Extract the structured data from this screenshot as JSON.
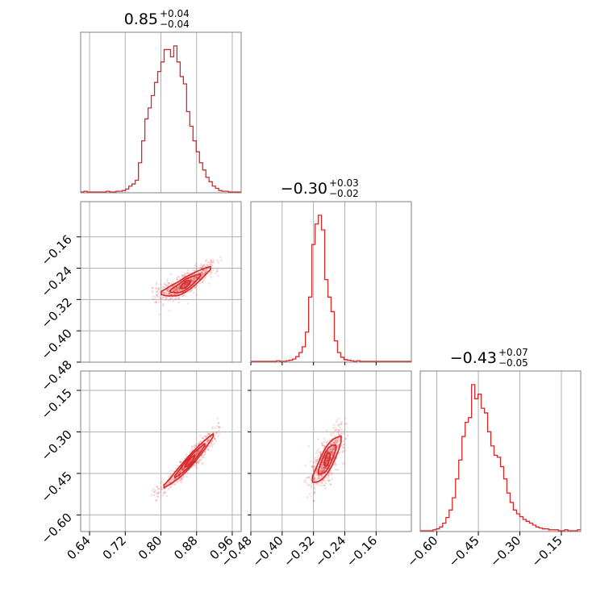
{
  "chart_data": {
    "type": "corner",
    "color": "#d62728",
    "grid": true,
    "parameters": [
      {
        "title": {
          "median": "0.85",
          "plus": "+0.04",
          "minus": "−0.04"
        },
        "range": [
          0.62,
          0.98
        ],
        "ticks": [
          0.64,
          0.72,
          0.8,
          0.88,
          0.96
        ],
        "tick_labels": [
          "0.64",
          "0.72",
          "0.80",
          "0.88",
          "0.96"
        ],
        "hist_bin_width": 0.0072,
        "hist_centers": [
          0.6236,
          0.6308,
          0.638,
          0.6452,
          0.6524,
          0.6596,
          0.6668,
          0.674,
          0.6812,
          0.6884,
          0.6956,
          0.7028,
          0.71,
          0.7172,
          0.7244,
          0.7316,
          0.7388,
          0.746,
          0.7532,
          0.7604,
          0.7676,
          0.7748,
          0.782,
          0.7892,
          0.7964,
          0.8036,
          0.8108,
          0.818,
          0.8252,
          0.8324,
          0.8396,
          0.8468,
          0.854,
          0.8612,
          0.8684,
          0.8756,
          0.8828,
          0.89,
          0.8972,
          0.9044,
          0.9116,
          0.9188,
          0.926,
          0.9332,
          0.9404,
          0.9476,
          0.9548,
          0.962,
          0.9692,
          0.9764
        ],
        "hist_counts": [
          0,
          1,
          0,
          0,
          0,
          0,
          0,
          0,
          1,
          0,
          0,
          1,
          1,
          2,
          4,
          8,
          11,
          16,
          40,
          70,
          100,
          115,
          132,
          150,
          165,
          178,
          195,
          195,
          185,
          200,
          178,
          158,
          148,
          110,
          90,
          70,
          55,
          40,
          30,
          20,
          14,
          8,
          5,
          2,
          1,
          1,
          0,
          0,
          0,
          0
        ]
      },
      {
        "title": {
          "median": "−0.30",
          "plus": "+0.03",
          "minus": "−0.02"
        },
        "range": [
          -0.48,
          -0.07
        ],
        "ticks": [
          -0.48,
          -0.4,
          -0.32,
          -0.24,
          -0.16
        ],
        "tick_labels": [
          "−0.48",
          "−0.40",
          "−0.32",
          "−0.24",
          "−0.16"
        ],
        "hist_bin_width": 0.0082,
        "hist_centers": [
          -0.4759,
          -0.4677,
          -0.4595,
          -0.4513,
          -0.4431,
          -0.4349,
          -0.4267,
          -0.4185,
          -0.4103,
          -0.4021,
          -0.3939,
          -0.3857,
          -0.3775,
          -0.3693,
          -0.3611,
          -0.3529,
          -0.3447,
          -0.3365,
          -0.3283,
          -0.3201,
          -0.3119,
          -0.3037,
          -0.2955,
          -0.2873,
          -0.2791,
          -0.2709,
          -0.2627,
          -0.2545,
          -0.2463,
          -0.2381,
          -0.2299,
          -0.2217,
          -0.2135,
          -0.2053,
          -0.1971,
          -0.1889,
          -0.1807,
          -0.1725,
          -0.1643,
          -0.1561,
          -0.1479,
          -0.1397,
          -0.1315,
          -0.1233,
          -0.1151,
          -0.1069,
          -0.0987,
          -0.0905,
          -0.0823,
          -0.0741
        ],
        "hist_counts": [
          0,
          0,
          0,
          0,
          0,
          0,
          0,
          0,
          1,
          0,
          0,
          1,
          2,
          4,
          8,
          15,
          25,
          50,
          110,
          200,
          235,
          250,
          225,
          140,
          110,
          85,
          35,
          15,
          7,
          3,
          2,
          1,
          0,
          1,
          0,
          0,
          0,
          0,
          0,
          0,
          0,
          0,
          0,
          0,
          0,
          0,
          0,
          0,
          0,
          0
        ]
      },
      {
        "title": {
          "median": "−0.43",
          "plus": "+0.07",
          "minus": "−0.05"
        },
        "range": [
          -0.66,
          -0.08
        ],
        "ticks": [
          -0.6,
          -0.45,
          -0.3,
          -0.15
        ],
        "tick_labels": [
          "−0.60",
          "−0.45",
          "−0.30",
          "−0.15"
        ],
        "y_ticks_in_corner": [
          -0.6,
          -0.45,
          -0.3,
          -0.15
        ],
        "hist_bin_width": 0.0116,
        "hist_centers": [
          -0.6542,
          -0.6426,
          -0.631,
          -0.6194,
          -0.6078,
          -0.5962,
          -0.5846,
          -0.573,
          -0.5614,
          -0.5498,
          -0.5382,
          -0.5266,
          -0.515,
          -0.5034,
          -0.4918,
          -0.4802,
          -0.4686,
          -0.457,
          -0.4454,
          -0.4338,
          -0.4222,
          -0.4106,
          -0.399,
          -0.3874,
          -0.3758,
          -0.3642,
          -0.3526,
          -0.341,
          -0.3294,
          -0.3178,
          -0.3062,
          -0.2946,
          -0.283,
          -0.2714,
          -0.2598,
          -0.2482,
          -0.2366,
          -0.225,
          -0.2134,
          -0.2018,
          -0.1902,
          -0.1786,
          -0.167,
          -0.1554,
          -0.1438,
          -0.1322,
          -0.1206,
          -0.109,
          -0.0974,
          -0.0858
        ],
        "hist_counts": [
          0,
          0,
          0,
          0,
          1,
          2,
          4,
          8,
          14,
          22,
          35,
          55,
          75,
          100,
          115,
          120,
          155,
          140,
          145,
          130,
          125,
          105,
          90,
          80,
          78,
          68,
          55,
          40,
          30,
          22,
          18,
          15,
          12,
          10,
          8,
          6,
          4,
          3,
          2,
          2,
          1,
          1,
          1,
          0,
          0,
          1,
          0,
          0,
          0,
          1
        ]
      }
    ],
    "pairs": [
      {
        "x_param": 0,
        "y_param": 1,
        "center": [
          0.853,
          -0.283
        ],
        "spine": [
          [
            0.785,
            -0.305
          ],
          [
            0.81,
            -0.302
          ],
          [
            0.84,
            -0.292
          ],
          [
            0.87,
            -0.272
          ],
          [
            0.9,
            -0.248
          ],
          [
            0.93,
            -0.225
          ]
        ],
        "spread_y": 0.013,
        "contour_levels": [
          0.25,
          0.55,
          0.85
        ]
      },
      {
        "x_param": 0,
        "y_param": 2,
        "center": [
          0.85,
          -0.43
        ],
        "spine": [
          [
            0.785,
            -0.525
          ],
          [
            0.82,
            -0.48
          ],
          [
            0.85,
            -0.432
          ],
          [
            0.88,
            -0.38
          ],
          [
            0.91,
            -0.325
          ],
          [
            0.93,
            -0.29
          ]
        ],
        "spread_y": 0.016,
        "contour_levels": [
          0.25,
          0.55,
          0.85
        ]
      },
      {
        "x_param": 1,
        "y_param": 2,
        "center": [
          -0.296,
          -0.43
        ],
        "spine": [
          [
            -0.335,
            -0.49
          ],
          [
            -0.315,
            -0.46
          ],
          [
            -0.295,
            -0.42
          ],
          [
            -0.275,
            -0.38
          ],
          [
            -0.255,
            -0.34
          ],
          [
            -0.24,
            -0.3
          ]
        ],
        "spread_y": 0.035,
        "contour_levels": [
          0.25,
          0.55,
          0.85
        ]
      }
    ]
  }
}
